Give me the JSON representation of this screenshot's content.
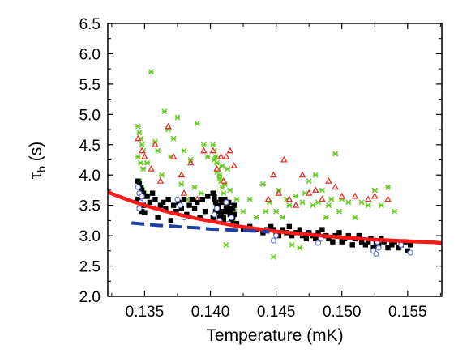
{
  "chart_data": {
    "type": "scatter",
    "title": "",
    "xlabel": "Temperature (mK)",
    "ylabel_symbol": "τ",
    "ylabel_sub": "b",
    "ylabel_unit": " (s)",
    "xlim": [
      0.1322,
      0.1576
    ],
    "ylim": [
      2.0,
      6.5
    ],
    "xticks": [
      0.135,
      0.14,
      0.145,
      0.15,
      0.155
    ],
    "xtick_labels": [
      "0.135",
      "0.140",
      "0.145",
      "0.150",
      "0.155"
    ],
    "yticks": [
      2.0,
      2.5,
      3.0,
      3.5,
      4.0,
      4.5,
      5.0,
      5.5,
      6.0,
      6.5
    ],
    "ytick_labels": [
      "2.0",
      "2.5",
      "3.0",
      "3.5",
      "4.0",
      "4.5",
      "5.0",
      "5.5",
      "6.0",
      "6.5"
    ],
    "grid": false,
    "series": [
      {
        "marker": "square",
        "color": "#000000",
        "x": [
          0.1345,
          0.1346,
          0.1347,
          0.1348,
          0.1349,
          0.135,
          0.1345,
          0.1347,
          0.1349,
          0.1346,
          0.1348,
          0.135,
          0.1352,
          0.1354,
          0.1356,
          0.1358,
          0.136,
          0.1362,
          0.1364,
          0.1366,
          0.1368,
          0.137,
          0.1372,
          0.1374,
          0.1376,
          0.1378,
          0.138,
          0.1382,
          0.1384,
          0.1386,
          0.1388,
          0.139,
          0.1392,
          0.1394,
          0.1396,
          0.1398,
          0.1402,
          0.1403,
          0.1404,
          0.1405,
          0.1406,
          0.1407,
          0.1408,
          0.1409,
          0.141,
          0.1411,
          0.1412,
          0.1413,
          0.1414,
          0.1415,
          0.1416,
          0.1417,
          0.1418,
          0.1402,
          0.1404,
          0.1406,
          0.1408,
          0.141,
          0.1412,
          0.1414,
          0.1416,
          0.1418,
          0.1403,
          0.1405,
          0.1407,
          0.1409,
          0.1411,
          0.1413,
          0.1415,
          0.1417,
          0.142,
          0.1425,
          0.143,
          0.1435,
          0.144,
          0.1443,
          0.1446,
          0.1448,
          0.145,
          0.1452,
          0.1455,
          0.1458,
          0.146,
          0.1462,
          0.1465,
          0.1468,
          0.147,
          0.1473,
          0.1475,
          0.1478,
          0.148,
          0.1482,
          0.1485,
          0.1488,
          0.149,
          0.1493,
          0.1495,
          0.1498,
          0.15,
          0.1502,
          0.1505,
          0.1508,
          0.151,
          0.1513,
          0.1515,
          0.1518,
          0.152,
          0.1522,
          0.1524,
          0.1526,
          0.1528,
          0.153,
          0.1532,
          0.1535,
          0.1538,
          0.154,
          0.1543,
          0.1545,
          0.1548,
          0.155,
          0.1552
        ],
        "y": [
          3.9,
          3.85,
          3.8,
          3.75,
          3.7,
          3.65,
          3.6,
          3.55,
          3.5,
          3.45,
          3.4,
          3.38,
          3.65,
          3.55,
          3.7,
          3.6,
          3.3,
          3.5,
          3.55,
          3.45,
          3.6,
          3.25,
          3.5,
          3.4,
          3.55,
          3.45,
          3.6,
          3.35,
          3.5,
          3.6,
          3.45,
          3.55,
          3.3,
          3.6,
          3.4,
          3.65,
          3.7,
          3.6,
          3.55,
          3.5,
          3.45,
          3.4,
          3.35,
          3.3,
          3.25,
          3.6,
          3.55,
          3.5,
          3.45,
          3.4,
          3.35,
          3.3,
          3.5,
          3.3,
          3.4,
          3.5,
          3.6,
          3.3,
          3.45,
          3.55,
          3.25,
          3.35,
          3.65,
          3.45,
          3.3,
          3.55,
          3.4,
          3.5,
          3.35,
          3.45,
          3.2,
          3.1,
          3.15,
          3.1,
          3.05,
          3.1,
          3.15,
          3.1,
          3.05,
          3.0,
          3.1,
          3.05,
          3.15,
          3.0,
          3.05,
          3.1,
          3.0,
          2.95,
          3.05,
          3.0,
          2.95,
          3.05,
          3.1,
          3.0,
          2.95,
          2.9,
          3.0,
          3.05,
          2.9,
          2.95,
          3.0,
          2.85,
          2.95,
          3.0,
          2.9,
          2.85,
          2.9,
          2.95,
          2.8,
          2.9,
          2.85,
          2.95,
          2.9,
          2.8,
          2.85,
          2.9,
          2.8,
          2.85,
          2.9,
          2.75,
          2.85
        ]
      },
      {
        "marker": "open-circle",
        "color": "#5a6fd6",
        "x": [
          0.1345,
          0.1346,
          0.1347,
          0.1346,
          0.1348,
          0.1375,
          0.1377,
          0.138,
          0.1403,
          0.1405,
          0.1407,
          0.1412,
          0.1414,
          0.1416,
          0.1448,
          0.145,
          0.1482,
          0.1484,
          0.1524,
          0.1526,
          0.1528,
          0.1527,
          0.1545,
          0.1552
        ],
        "y": [
          3.8,
          3.7,
          3.55,
          3.45,
          3.65,
          3.6,
          3.5,
          3.3,
          3.35,
          3.45,
          3.25,
          3.55,
          3.2,
          3.3,
          2.92,
          3.0,
          2.88,
          2.95,
          2.75,
          2.7,
          2.8,
          2.9,
          2.85,
          2.72
        ]
      },
      {
        "marker": "triangle",
        "color": "#e8302a",
        "x": [
          0.1345,
          0.1348,
          0.135,
          0.1355,
          0.1358,
          0.1362,
          0.1368,
          0.1372,
          0.1378,
          0.138,
          0.1385,
          0.139,
          0.1395,
          0.1402,
          0.1405,
          0.1408,
          0.141,
          0.1412,
          0.1415,
          0.1418,
          0.1444,
          0.1448,
          0.1452,
          0.1456,
          0.146,
          0.1465,
          0.147,
          0.1475,
          0.148,
          0.1485,
          0.149,
          0.1495,
          0.15,
          0.151,
          0.152,
          0.1525,
          0.1535
        ],
        "y": [
          4.6,
          4.4,
          4.3,
          4.1,
          4.5,
          3.9,
          4.8,
          4.3,
          4.0,
          3.7,
          4.2,
          3.6,
          4.4,
          4.4,
          4.1,
          4.3,
          3.9,
          4.3,
          4.4,
          4.15,
          3.6,
          4.0,
          3.7,
          4.25,
          3.6,
          3.5,
          4.0,
          3.7,
          3.75,
          3.6,
          3.9,
          3.8,
          3.65,
          3.65,
          3.6,
          3.65,
          3.6
        ]
      },
      {
        "marker": "x",
        "color": "#66cc22",
        "x": [
          0.1345,
          0.1346,
          0.1347,
          0.1348,
          0.1349,
          0.1345,
          0.1347,
          0.1349,
          0.1346,
          0.1348,
          0.135,
          0.1345,
          0.1347,
          0.1352,
          0.1355,
          0.1358,
          0.136,
          0.1363,
          0.1365,
          0.1368,
          0.137,
          0.1372,
          0.1375,
          0.1378,
          0.138,
          0.1382,
          0.1385,
          0.1388,
          0.139,
          0.1393,
          0.1395,
          0.1398,
          0.1402,
          0.1403,
          0.1404,
          0.1405,
          0.1406,
          0.1407,
          0.1408,
          0.1409,
          0.141,
          0.1411,
          0.1412,
          0.1413,
          0.1414,
          0.1415,
          0.1416,
          0.1417,
          0.1418,
          0.1403,
          0.1405,
          0.1407,
          0.1409,
          0.1411,
          0.1413,
          0.1415,
          0.1412,
          0.142,
          0.1425,
          0.143,
          0.1435,
          0.144,
          0.1442,
          0.1445,
          0.1448,
          0.145,
          0.1452,
          0.1455,
          0.1458,
          0.146,
          0.1462,
          0.1465,
          0.1468,
          0.147,
          0.1472,
          0.1475,
          0.1478,
          0.148,
          0.1482,
          0.1485,
          0.1488,
          0.149,
          0.1492,
          0.1495,
          0.1498,
          0.15,
          0.1505,
          0.151,
          0.1515,
          0.152,
          0.1525,
          0.153,
          0.1535,
          0.154
        ],
        "y": [
          4.8,
          4.7,
          4.6,
          4.5,
          4.4,
          4.3,
          4.2,
          4.1,
          3.9,
          3.8,
          3.7,
          3.6,
          3.5,
          4.2,
          5.7,
          4.55,
          4.4,
          4.0,
          5.05,
          4.75,
          4.3,
          4.6,
          4.95,
          3.85,
          4.4,
          3.6,
          4.25,
          3.8,
          4.85,
          3.7,
          4.5,
          4.3,
          4.5,
          4.4,
          4.3,
          4.2,
          4.1,
          4.0,
          3.9,
          3.8,
          3.7,
          3.6,
          3.5,
          3.45,
          3.4,
          3.35,
          3.3,
          3.25,
          3.4,
          4.25,
          4.05,
          3.95,
          4.15,
          3.85,
          4.1,
          3.75,
          2.85,
          3.6,
          3.4,
          3.6,
          3.3,
          3.85,
          3.4,
          3.55,
          2.65,
          3.4,
          3.75,
          3.3,
          3.6,
          3.5,
          2.85,
          3.65,
          2.8,
          3.55,
          3.7,
          3.9,
          3.5,
          4.0,
          3.55,
          3.75,
          3.3,
          3.5,
          3.6,
          4.35,
          3.4,
          3.6,
          3.55,
          3.3,
          3.55,
          3.5,
          3.75,
          3.5,
          3.8,
          3.4
        ]
      },
      {
        "type": "line",
        "style": "solid",
        "color": "#ff1a1a",
        "x": [
          0.1322,
          0.133,
          0.134,
          0.135,
          0.136,
          0.137,
          0.138,
          0.139,
          0.14,
          0.141,
          0.142,
          0.143,
          0.144,
          0.145,
          0.146,
          0.147,
          0.148,
          0.149,
          0.15,
          0.151,
          0.152,
          0.153,
          0.154,
          0.155,
          0.156,
          0.157,
          0.1576
        ],
        "y": [
          3.72,
          3.65,
          3.57,
          3.5,
          3.44,
          3.38,
          3.33,
          3.28,
          3.24,
          3.2,
          3.16,
          3.13,
          3.1,
          3.07,
          3.05,
          3.03,
          3.01,
          2.99,
          2.97,
          2.96,
          2.94,
          2.93,
          2.92,
          2.91,
          2.9,
          2.89,
          2.88
        ]
      },
      {
        "type": "line",
        "style": "dashed",
        "color": "#1e3fa6",
        "x": [
          0.134,
          0.135,
          0.136,
          0.137,
          0.138,
          0.139,
          0.14,
          0.141,
          0.142,
          0.143,
          0.144,
          0.1445
        ],
        "y": [
          3.21,
          3.19,
          3.17,
          3.16,
          3.14,
          3.13,
          3.11,
          3.1,
          3.09,
          3.08,
          3.07,
          3.06
        ]
      }
    ]
  }
}
